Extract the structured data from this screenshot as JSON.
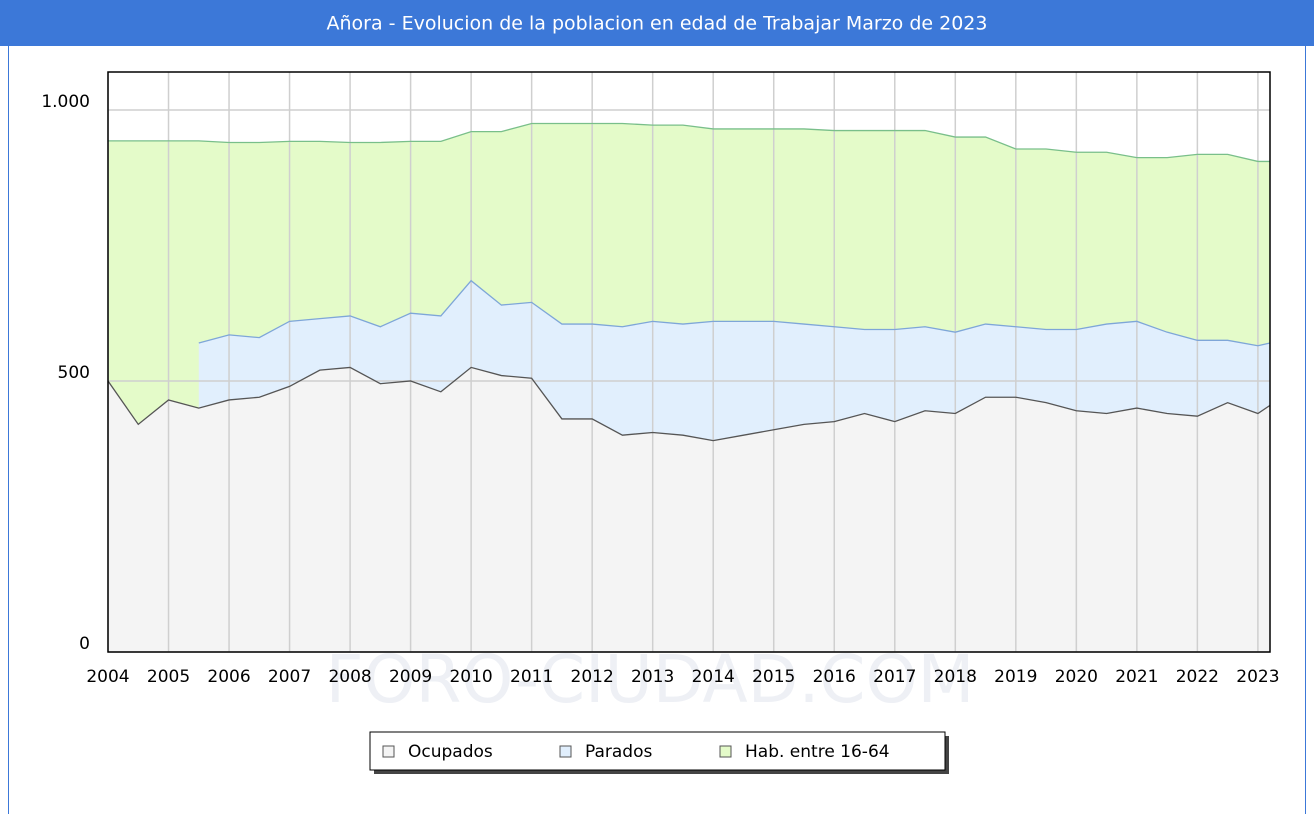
{
  "chart_data": {
    "type": "area",
    "title": "Añora - Evolucion de la poblacion en edad de Trabajar Marzo de 2023",
    "watermark": "FORO-CIUDAD.COM",
    "x": [
      2004,
      2004.5,
      2005,
      2005.5,
      2006,
      2006.5,
      2007,
      2007.5,
      2008,
      2008.5,
      2009,
      2009.5,
      2010,
      2010.5,
      2011,
      2011.5,
      2012,
      2012.5,
      2013,
      2013.5,
      2014,
      2014.5,
      2015,
      2015.5,
      2016,
      2016.5,
      2017,
      2017.5,
      2018,
      2018.5,
      2019,
      2019.5,
      2020,
      2020.5,
      2021,
      2021.5,
      2022,
      2022.5,
      2023,
      2023.2
    ],
    "series": [
      {
        "name": "Ocupados",
        "color": "#f4f4f4",
        "line_color": "#555555",
        "values": [
          500,
          420,
          465,
          450,
          465,
          470,
          490,
          520,
          525,
          495,
          500,
          480,
          525,
          510,
          505,
          430,
          430,
          400,
          405,
          400,
          390,
          400,
          410,
          420,
          425,
          440,
          425,
          445,
          440,
          470,
          470,
          460,
          445,
          440,
          450,
          440,
          435,
          460,
          440,
          455
        ]
      },
      {
        "name": "Parados",
        "color": "#e1effd",
        "line_color": "#7ea6d8",
        "stacked": true,
        "values": [
          null,
          null,
          null,
          120,
          120,
          110,
          120,
          95,
          95,
          105,
          125,
          140,
          160,
          130,
          140,
          175,
          175,
          200,
          205,
          205,
          220,
          210,
          200,
          185,
          175,
          155,
          170,
          155,
          150,
          135,
          130,
          135,
          150,
          165,
          160,
          150,
          140,
          115,
          125,
          115
        ]
      },
      {
        "name": "Hab. entre 16-64",
        "color": "#e4fbc9",
        "line_color": "#79bf8a",
        "values": [
          943,
          943,
          943,
          943,
          940,
          940,
          942,
          942,
          940,
          940,
          942,
          942,
          960,
          960,
          975,
          975,
          975,
          975,
          972,
          972,
          965,
          965,
          965,
          965,
          962,
          962,
          962,
          962,
          950,
          950,
          928,
          928,
          922,
          922,
          912,
          912,
          918,
          918,
          905,
          905
        ]
      }
    ],
    "xlim": [
      2004,
      2023.2
    ],
    "xticks": [
      2004,
      2005,
      2006,
      2007,
      2008,
      2009,
      2010,
      2011,
      2012,
      2013,
      2014,
      2015,
      2016,
      2017,
      2018,
      2019,
      2020,
      2021,
      2022,
      2023
    ],
    "ylim": [
      0,
      1070
    ],
    "yticks": [
      0,
      500,
      {
        "value": 1000,
        "label": "1.000"
      }
    ],
    "grid": true,
    "legend": "bottom"
  }
}
